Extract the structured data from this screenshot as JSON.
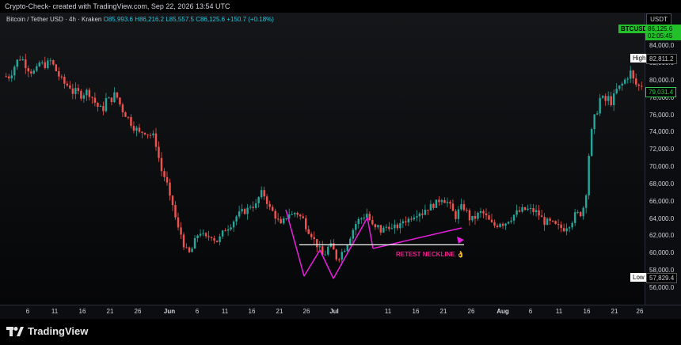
{
  "header": {
    "caption": "Crypto-Check- created with TradingView.com, Sep 22, 2026 13:54 UTC"
  },
  "symbol": {
    "name": "Bitcoin / Tether USD · 4h · Kraken",
    "open": "O85,993.6",
    "high": "H86,216.2",
    "low": "L85,557.5",
    "close": "C86,125.6",
    "change": "+150.7 (+0.18%)"
  },
  "price_axis": {
    "currency": "USDT",
    "ticker_tag": "BTCUSDT",
    "current_price": "86,125.6",
    "countdown": "02:05:45",
    "high_label": "High",
    "high_value": "82,811.2",
    "last_value": "79,031.4",
    "low_label": "Low",
    "low_value": "57,829.4",
    "labels": [
      "84,000.0",
      "82,000.0",
      "80,000.0",
      "78,000.0",
      "76,000.0",
      "74,000.0",
      "72,000.0",
      "70,000.0",
      "68,000.0",
      "66,000.0",
      "64,000.0",
      "62,000.0",
      "60,000.0",
      "58,000.0",
      "56,000.0"
    ]
  },
  "time_axis": {
    "labels": [
      "6",
      "11",
      "16",
      "21",
      "26",
      "Jun",
      "6",
      "11",
      "16",
      "21",
      "26",
      "Jul",
      "11",
      "16",
      "21",
      "26",
      "Aug",
      "6",
      "11",
      "16",
      "21",
      "26"
    ]
  },
  "annotation": {
    "text": "RETEST NECKLINE 👌"
  },
  "footer": {
    "brand": "TradingView"
  },
  "colors": {
    "up": "#26a69a",
    "down": "#ef5350",
    "accent_green": "#22c12a",
    "pattern_magenta": "#e91ee0"
  },
  "chart_data": {
    "type": "candlestick",
    "title": "Bitcoin / Tether USD · 4h · Kraken",
    "ylim": [
      55000,
      86000
    ],
    "price_trace": [
      [
        80500,
        80500
      ],
      [
        81500,
        82300
      ],
      [
        82800,
        82000
      ],
      [
        81400,
        81000
      ],
      [
        81000,
        82100
      ],
      [
        81800,
        81900
      ],
      [
        82300,
        81500
      ],
      [
        80700,
        80000
      ],
      [
        79500,
        79500
      ],
      [
        78600,
        78800
      ],
      [
        78300,
        78600
      ],
      [
        78800,
        78200
      ],
      [
        77400,
        76800
      ],
      [
        76600,
        78000
      ],
      [
        77600,
        78400
      ],
      [
        78000,
        76800
      ],
      [
        76200,
        75600
      ],
      [
        74800,
        74400
      ],
      [
        73800,
        74300
      ],
      [
        73900,
        73700
      ],
      [
        73400,
        71200
      ],
      [
        69200,
        68700
      ],
      [
        66300,
        65500
      ],
      [
        63000,
        62300
      ],
      [
        60800,
        59800
      ],
      [
        60500,
        61600
      ],
      [
        62700,
        62000
      ],
      [
        61600,
        62300
      ],
      [
        61700,
        61400
      ],
      [
        62100,
        62900
      ],
      [
        63200,
        63700
      ],
      [
        64300,
        64600
      ],
      [
        64900,
        65100
      ],
      [
        65800,
        65300
      ],
      [
        66500,
        67100
      ],
      [
        66300,
        65100
      ],
      [
        64700,
        63900
      ],
      [
        63100,
        64000
      ],
      [
        64700,
        64400
      ],
      [
        64900,
        64300
      ],
      [
        63900,
        62900
      ],
      [
        62400,
        61400
      ],
      [
        60800,
        59700
      ],
      [
        60100,
        61000
      ],
      [
        60400,
        59400
      ],
      [
        59900,
        60600
      ],
      [
        61400,
        62500
      ],
      [
        63400,
        63900
      ],
      [
        64200,
        64700
      ],
      [
        63700,
        62700
      ],
      [
        63100,
        62500
      ],
      [
        63000,
        63300
      ],
      [
        62600,
        63200
      ],
      [
        63100,
        64000
      ],
      [
        63800,
        64300
      ],
      [
        64600,
        64900
      ],
      [
        64700,
        65300
      ],
      [
        65300,
        65700
      ],
      [
        65800,
        66600
      ],
      [
        66200,
        65800
      ],
      [
        64900,
        64300
      ],
      [
        65100,
        65500
      ],
      [
        64700,
        63800
      ],
      [
        64100,
        64500
      ],
      [
        64800,
        64300
      ],
      [
        63700,
        63200
      ],
      [
        63300,
        63700
      ],
      [
        63400,
        63900
      ],
      [
        64200,
        64600
      ],
      [
        64800,
        65000
      ],
      [
        65100,
        65000
      ],
      [
        64900,
        64700
      ],
      [
        64100,
        63600
      ],
      [
        63600,
        63400
      ],
      [
        63100,
        63000
      ],
      [
        62900,
        63300
      ],
      [
        63600,
        64400
      ],
      [
        64600,
        64700
      ],
      [
        66800,
        72500
      ],
      [
        75300,
        76500
      ],
      [
        78300,
        77500
      ],
      [
        78000,
        77400
      ],
      [
        78800,
        79200
      ],
      [
        79700,
        80400
      ],
      [
        81000,
        79800
      ],
      [
        79300,
        79500
      ]
    ],
    "neckline_price": 61000,
    "annotations": [
      "RETEST NECKLINE 👌"
    ]
  }
}
